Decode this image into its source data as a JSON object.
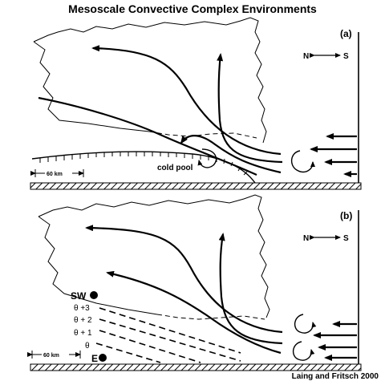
{
  "title": "Mesoscale Convective Complex Environments",
  "credit": "Laing and Fritsch 2000",
  "panel_a": {
    "label": "(a)",
    "orientation": {
      "north": "N",
      "south": "S"
    },
    "scale_label": "60 km",
    "cold_pool_label": "cold pool"
  },
  "panel_b": {
    "label": "(b)",
    "orientation": {
      "north": "N",
      "south": "S"
    },
    "scale_label": "60 km",
    "station_sw": "SW",
    "station_e": "E",
    "isentropes": [
      "θ +3",
      "θ + 2",
      "θ + 1",
      "θ"
    ]
  }
}
